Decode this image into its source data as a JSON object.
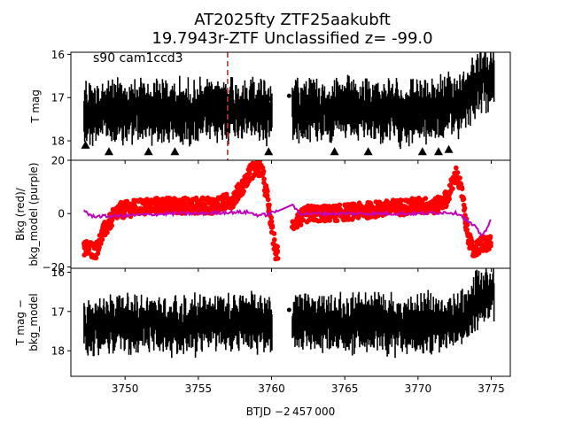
{
  "figure": {
    "title_line1": "AT2025fty  ZTF25aakubft",
    "title_line2": "19.7943r-ZTF Unclassified z= -99.0",
    "xlabel": "BTJD −2 457 000",
    "xticks": [
      "3750",
      "3755",
      "3760",
      "3765",
      "3770",
      "3775"
    ]
  },
  "chart_data": [
    {
      "type": "scatter",
      "panel": "top",
      "annotation": "s90 cam1ccd3",
      "ylabel": "T mag",
      "yticks": [
        "16",
        "17",
        "18"
      ],
      "xlim": [
        3746.3,
        3776.3
      ],
      "ylim": [
        18.45,
        15.95
      ],
      "y_inverted": true,
      "vertical_marker": {
        "x": 3757.0,
        "color": "#d62728",
        "style": "dashed"
      },
      "series": [
        {
          "role": "flux",
          "color": "#000000",
          "x": [
            3747.5,
            3748.5,
            3750.0,
            3752.0,
            3754.0,
            3756.0,
            3758.0,
            3759.5,
            3760.3,
            3761.8,
            3763.0,
            3765.0,
            3767.0,
            3769.0,
            3771.0,
            3772.5,
            3773.5,
            3774.2,
            3775.0
          ],
          "y": [
            17.35,
            17.3,
            17.35,
            17.3,
            17.35,
            17.3,
            17.25,
            17.3,
            17.35,
            17.2,
            17.25,
            17.3,
            17.3,
            17.35,
            17.3,
            17.2,
            16.9,
            16.6,
            16.6
          ]
        },
        {
          "role": "faint-limit",
          "marker": "triangle",
          "x": [
            3747.3,
            3748.9,
            3751.6,
            3753.4,
            3759.8,
            3764.3,
            3766.6,
            3770.3,
            3771.4,
            3772.1
          ],
          "y": [
            18.1,
            18.25,
            18.25,
            18.25,
            18.25,
            18.25,
            18.25,
            18.25,
            18.25,
            18.2
          ]
        }
      ]
    },
    {
      "type": "scatter",
      "panel": "middle",
      "ylabel": "Bkg (red)/\nbkg_model (purple)",
      "yticks": [
        "20",
        "0",
        "−20"
      ],
      "xlim": [
        3746.3,
        3776.3
      ],
      "ylim": [
        -20.5,
        20
      ],
      "series": [
        {
          "name": "Bkg",
          "color": "#ff0000",
          "x": [
            3747.5,
            3748.0,
            3748.6,
            3749.5,
            3750.5,
            3752.0,
            3754.0,
            3756.0,
            3757.3,
            3758.0,
            3758.6,
            3759.3,
            3759.7,
            3760.0,
            3760.3,
            3760.7,
            3761.6,
            3762.5,
            3764.0,
            3766.0,
            3768.0,
            3770.0,
            3771.3,
            3772.0,
            3772.6,
            3773.0,
            3773.3,
            3773.7,
            3774.2,
            3774.8
          ],
          "y": [
            -13,
            -14,
            -6,
            1,
            2,
            3,
            3,
            3,
            5,
            10,
            16,
            17,
            6,
            -5,
            -15,
            -13,
            -3,
            0,
            0,
            1,
            2,
            3,
            3,
            6,
            15,
            8,
            -5,
            -14,
            -12,
            -11
          ]
        },
        {
          "name": "bkg_model",
          "color": "#bf00bf",
          "x": [
            3747.2,
            3747.6,
            3748.2,
            3749.0,
            3751.0,
            3753.0,
            3755.0,
            3757.0,
            3758.4,
            3759.0,
            3759.6,
            3760.1,
            3760.5,
            3760.9,
            3761.3,
            3762.0,
            3764.0,
            3766.0,
            3768.0,
            3770.0,
            3772.0,
            3772.8,
            3773.4,
            3773.9,
            3774.3,
            3774.7,
            3775.0
          ],
          "y": [
            1.5,
            -0.8,
            -1.0,
            -1.0,
            -0.5,
            0,
            0,
            0.5,
            0.5,
            -0.5,
            -0.5,
            0.5,
            1.5,
            3.0,
            3.5,
            0,
            0,
            0,
            0,
            0,
            0.5,
            0,
            -3,
            -5,
            -8,
            -6,
            -2
          ]
        }
      ]
    },
    {
      "type": "scatter",
      "panel": "bottom",
      "ylabel": "T mag −\nbkg_model",
      "yticks": [
        "16",
        "17",
        "18"
      ],
      "xlim": [
        3746.3,
        3776.3
      ],
      "ylim": [
        18.65,
        15.9
      ],
      "y_inverted": true,
      "series": [
        {
          "role": "flux",
          "color": "#000000",
          "x": [
            3747.5,
            3748.5,
            3750.0,
            3752.0,
            3754.0,
            3756.0,
            3758.0,
            3759.5,
            3760.3,
            3761.8,
            3763.0,
            3765.0,
            3767.0,
            3769.0,
            3771.0,
            3772.5,
            3773.5,
            3774.2,
            3775.0
          ],
          "y": [
            17.4,
            17.3,
            17.35,
            17.3,
            17.35,
            17.3,
            17.3,
            17.3,
            17.35,
            17.2,
            17.25,
            17.3,
            17.3,
            17.35,
            17.3,
            17.25,
            17.0,
            16.7,
            16.5
          ]
        }
      ]
    }
  ]
}
